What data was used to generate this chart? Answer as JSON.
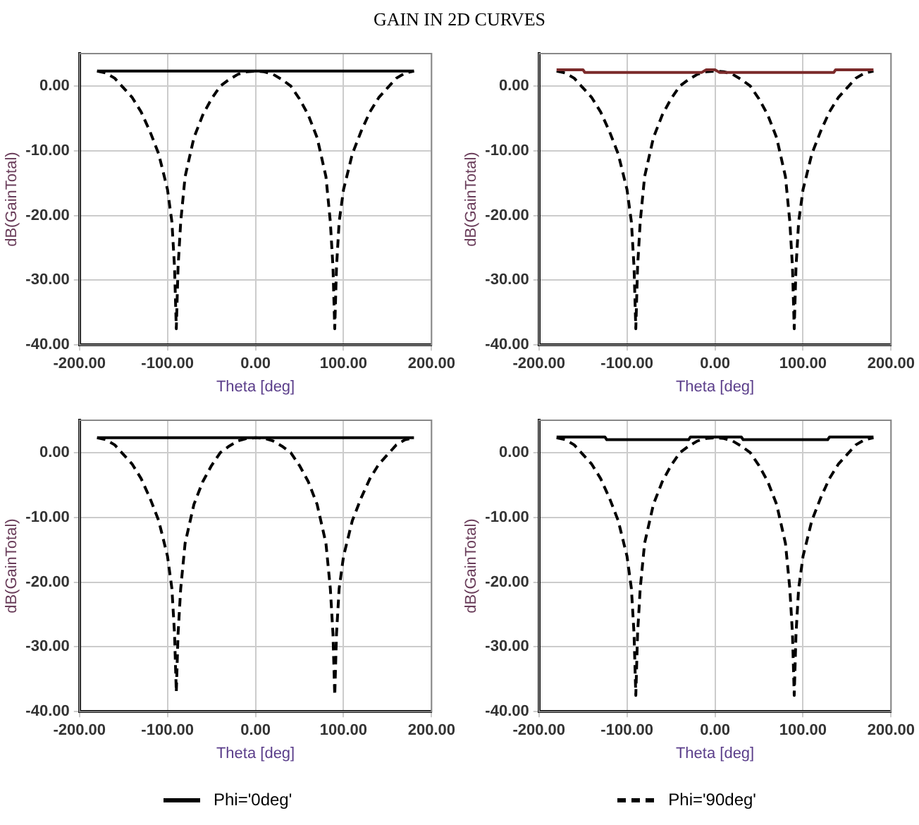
{
  "chart_data": [
    {
      "type": "line",
      "title": "GAIN IN 2D CURVES",
      "xlabel": "Theta [deg]",
      "ylabel": "dB(GainTotal)",
      "xlim": [
        -200,
        200
      ],
      "xticks": [
        {
          "value": -200,
          "label": "-200.00"
        },
        {
          "value": -100,
          "label": "-100.00"
        },
        {
          "value": 0,
          "label": "0.00"
        },
        {
          "value": 100,
          "label": "100.00"
        },
        {
          "value": 200,
          "label": "200.00"
        }
      ],
      "ylim": [
        -40,
        5
      ],
      "yticks": [
        {
          "value": -40,
          "label": "-40.00"
        },
        {
          "value": -30,
          "label": "-30.00"
        },
        {
          "value": -20,
          "label": "-20.00"
        },
        {
          "value": -10,
          "label": "-10.00"
        },
        {
          "value": 0,
          "label": "0.00"
        }
      ],
      "grid": true,
      "legend": "bottom",
      "marker": "none",
      "series": [
        {
          "name": "Phi='0deg'",
          "color": "#000000",
          "line_style": "solid",
          "x": [
            -180,
            180
          ],
          "values": [
            2.3,
            2.3
          ]
        },
        {
          "name": "Phi='90deg'",
          "color": "#000000",
          "line_style": "dashed",
          "x": [
            -180,
            -170,
            -160,
            -150,
            -140,
            -130,
            -120,
            -110,
            -100,
            -95,
            -92,
            -90,
            -88,
            -85,
            -80,
            -70,
            -60,
            -50,
            -40,
            -30,
            -20,
            -10,
            0,
            10,
            20,
            30,
            40,
            50,
            60,
            70,
            80,
            85,
            88,
            90,
            92,
            95,
            100,
            110,
            120,
            130,
            140,
            150,
            160,
            170,
            180
          ],
          "values": [
            2.3,
            2.0,
            1.2,
            -0.3,
            -1.8,
            -4,
            -7,
            -10.5,
            -16,
            -21,
            -28,
            -37.5,
            -28,
            -21,
            -14,
            -8,
            -4.5,
            -2,
            0,
            1,
            1.8,
            2.2,
            2.3,
            2.2,
            1.8,
            1,
            0,
            -2,
            -4.5,
            -8,
            -14,
            -21,
            -28,
            -37.5,
            -28,
            -21,
            -16,
            -10.5,
            -7,
            -4,
            -1.8,
            -0.3,
            1.2,
            2.0,
            2.3
          ]
        }
      ]
    },
    {
      "type": "line",
      "xlabel": "Theta [deg]",
      "ylabel": "dB(GainTotal)",
      "xlim": [
        -200,
        200
      ],
      "xticks": [
        {
          "value": -200,
          "label": "-200.00"
        },
        {
          "value": -100,
          "label": "-100.00"
        },
        {
          "value": 0,
          "label": "0.00"
        },
        {
          "value": 100,
          "label": "100.00"
        },
        {
          "value": 200,
          "label": "200.00"
        }
      ],
      "ylim": [
        -40,
        5
      ],
      "yticks": [
        {
          "value": -40,
          "label": "-40.00"
        },
        {
          "value": -30,
          "label": "-30.00"
        },
        {
          "value": -20,
          "label": "-20.00"
        },
        {
          "value": -10,
          "label": "-10.00"
        },
        {
          "value": 0,
          "label": "0.00"
        }
      ],
      "grid": true,
      "marker": "none",
      "series": [
        {
          "color": "#7b2a2a",
          "line_style": "solid",
          "x": [
            -180,
            -150,
            -148,
            -15,
            -10,
            0,
            5,
            135,
            137,
            180
          ],
          "values": [
            2.5,
            2.5,
            2.1,
            2.1,
            2.5,
            2.5,
            2.1,
            2.1,
            2.5,
            2.5
          ]
        },
        {
          "color": "#000000",
          "line_style": "dashed",
          "x": [
            -180,
            -170,
            -160,
            -150,
            -140,
            -130,
            -120,
            -110,
            -100,
            -95,
            -92,
            -90,
            -88,
            -85,
            -80,
            -70,
            -60,
            -50,
            -40,
            -30,
            -20,
            -10,
            0,
            10,
            20,
            30,
            40,
            50,
            60,
            70,
            80,
            85,
            88,
            90,
            92,
            95,
            100,
            110,
            120,
            130,
            140,
            150,
            160,
            170,
            180
          ],
          "values": [
            2.3,
            2.0,
            1.2,
            -0.3,
            -1.8,
            -4,
            -7,
            -10.5,
            -16,
            -21,
            -28,
            -37.5,
            -28,
            -21,
            -14,
            -8,
            -4.5,
            -2,
            0,
            1,
            1.8,
            2.2,
            2.3,
            2.2,
            1.8,
            1,
            0,
            -2,
            -4.5,
            -8,
            -14,
            -21,
            -28,
            -37.5,
            -28,
            -21,
            -16,
            -10.5,
            -7,
            -4,
            -1.8,
            -0.3,
            1.2,
            2.0,
            2.3
          ]
        }
      ]
    },
    {
      "type": "line",
      "xlabel": "Theta [deg]",
      "ylabel": "dB(GainTotal)",
      "xlim": [
        -200,
        200
      ],
      "xticks": [
        {
          "value": -200,
          "label": "-200.00"
        },
        {
          "value": -100,
          "label": "-100.00"
        },
        {
          "value": 0,
          "label": "0.00"
        },
        {
          "value": 100,
          "label": "100.00"
        },
        {
          "value": 200,
          "label": "200.00"
        }
      ],
      "ylim": [
        -40,
        5
      ],
      "yticks": [
        {
          "value": -40,
          "label": "-40.00"
        },
        {
          "value": -30,
          "label": "-30.00"
        },
        {
          "value": -20,
          "label": "-20.00"
        },
        {
          "value": -10,
          "label": "-10.00"
        },
        {
          "value": 0,
          "label": "0.00"
        }
      ],
      "grid": true,
      "marker": "none",
      "series": [
        {
          "color": "#000000",
          "line_style": "solid",
          "x": [
            -180,
            180
          ],
          "values": [
            2.3,
            2.3
          ]
        },
        {
          "color": "#000000",
          "line_style": "dashed",
          "x": [
            -180,
            -170,
            -160,
            -150,
            -140,
            -130,
            -120,
            -110,
            -100,
            -95,
            -92,
            -90,
            -88,
            -85,
            -80,
            -70,
            -60,
            -50,
            -40,
            -30,
            -20,
            -10,
            0,
            10,
            20,
            30,
            40,
            50,
            60,
            70,
            80,
            85,
            88,
            90,
            92,
            95,
            100,
            110,
            120,
            130,
            140,
            150,
            160,
            170,
            180
          ],
          "values": [
            2.3,
            2.0,
            1.2,
            -0.3,
            -1.8,
            -4,
            -7,
            -10.5,
            -16,
            -21,
            -28,
            -37,
            -28,
            -21,
            -14,
            -8,
            -4.5,
            -2,
            0,
            1,
            1.8,
            2.2,
            2.3,
            2.2,
            1.8,
            1,
            0,
            -2,
            -4.5,
            -8,
            -14,
            -21,
            -28,
            -37.5,
            -28,
            -21,
            -16,
            -10.5,
            -7,
            -4,
            -1.8,
            -0.3,
            1.2,
            2.0,
            2.3
          ]
        }
      ]
    },
    {
      "type": "line",
      "xlabel": "Theta [deg]",
      "ylabel": "dB(GainTotal)",
      "xlim": [
        -200,
        200
      ],
      "xticks": [
        {
          "value": -200,
          "label": "-200.00"
        },
        {
          "value": -100,
          "label": "-100.00"
        },
        {
          "value": 0,
          "label": "0.00"
        },
        {
          "value": 100,
          "label": "100.00"
        },
        {
          "value": 200,
          "label": "200.00"
        }
      ],
      "ylim": [
        -40,
        5
      ],
      "yticks": [
        {
          "value": -40,
          "label": "-40.00"
        },
        {
          "value": -30,
          "label": "-30.00"
        },
        {
          "value": -20,
          "label": "-20.00"
        },
        {
          "value": -10,
          "label": "-10.00"
        },
        {
          "value": 0,
          "label": "0.00"
        }
      ],
      "grid": true,
      "marker": "none",
      "series": [
        {
          "color": "#000000",
          "line_style": "solid",
          "x": [
            -180,
            -125,
            -123,
            -30,
            -28,
            30,
            32,
            128,
            130,
            180
          ],
          "values": [
            2.4,
            2.4,
            2.0,
            2.0,
            2.4,
            2.4,
            2.0,
            2.0,
            2.4,
            2.4
          ]
        },
        {
          "color": "#000000",
          "line_style": "dashed",
          "x": [
            -180,
            -170,
            -160,
            -150,
            -140,
            -130,
            -120,
            -110,
            -100,
            -95,
            -92,
            -90,
            -88,
            -85,
            -80,
            -70,
            -60,
            -50,
            -40,
            -30,
            -20,
            -10,
            0,
            10,
            20,
            30,
            40,
            50,
            60,
            70,
            80,
            85,
            88,
            90,
            92,
            95,
            100,
            110,
            120,
            130,
            140,
            150,
            160,
            170,
            180
          ],
          "values": [
            2.3,
            2.0,
            1.2,
            -0.3,
            -1.8,
            -4,
            -7,
            -10.5,
            -16,
            -21,
            -28,
            -37.5,
            -28,
            -21,
            -14,
            -8,
            -4.5,
            -2,
            0,
            1,
            1.8,
            2.2,
            2.3,
            2.2,
            1.8,
            1,
            0,
            -2,
            -4.5,
            -8,
            -14,
            -21,
            -28,
            -37.5,
            -28,
            -21,
            -16,
            -10.5,
            -7,
            -4,
            -1.8,
            -0.3,
            1.2,
            2.0,
            2.3
          ]
        }
      ]
    }
  ]
}
